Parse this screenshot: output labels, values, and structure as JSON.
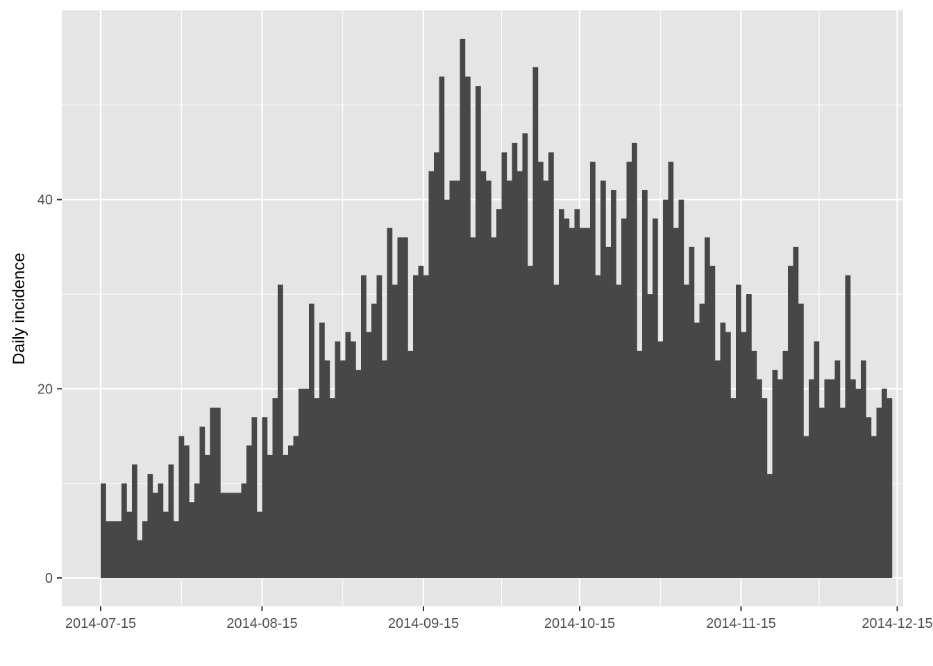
{
  "chart_data": {
    "type": "bar",
    "title": "",
    "xlabel": "",
    "ylabel": "Daily incidence",
    "x_start_date": "2014-07-15",
    "x_end_date": "2014-12-12",
    "x_ticks": [
      "2014-07-15",
      "2014-08-15",
      "2014-09-15",
      "2014-10-15",
      "2014-11-15",
      "2014-12-15"
    ],
    "y_ticks": [
      0,
      20,
      40
    ],
    "ylim": [
      -3,
      60
    ],
    "grid": true,
    "legend": "none",
    "colors": {
      "panel": "#e5e5e5",
      "grid": "#ffffff",
      "bar": "#474747",
      "tick": "#333333"
    },
    "values": [
      10,
      6,
      6,
      6,
      10,
      7,
      12,
      4,
      6,
      11,
      9,
      10,
      7,
      12,
      6,
      15,
      14,
      8,
      10,
      16,
      13,
      18,
      18,
      9,
      9,
      9,
      9,
      10,
      14,
      17,
      7,
      17,
      13,
      19,
      31,
      13,
      14,
      15,
      20,
      20,
      29,
      19,
      27,
      23,
      19,
      25,
      23,
      26,
      25,
      22,
      32,
      26,
      29,
      32,
      23,
      37,
      31,
      36,
      36,
      24,
      32,
      33,
      32,
      43,
      45,
      53,
      40,
      42,
      42,
      57,
      53,
      36,
      52,
      43,
      42,
      36,
      39,
      45,
      42,
      46,
      43,
      47,
      33,
      54,
      44,
      42,
      45,
      31,
      39,
      38,
      37,
      39,
      37,
      37,
      44,
      32,
      42,
      35,
      41,
      31,
      38,
      44,
      46,
      24,
      41,
      30,
      38,
      25,
      40,
      44,
      37,
      40,
      31,
      35,
      27,
      29,
      36,
      33,
      23,
      27,
      26,
      19,
      31,
      26,
      30,
      24,
      21,
      19,
      11,
      22,
      21,
      24,
      33,
      35,
      29,
      15,
      21,
      25,
      18,
      21,
      21,
      23,
      18,
      32,
      21,
      20,
      23,
      17,
      15,
      18,
      20,
      19
    ]
  }
}
